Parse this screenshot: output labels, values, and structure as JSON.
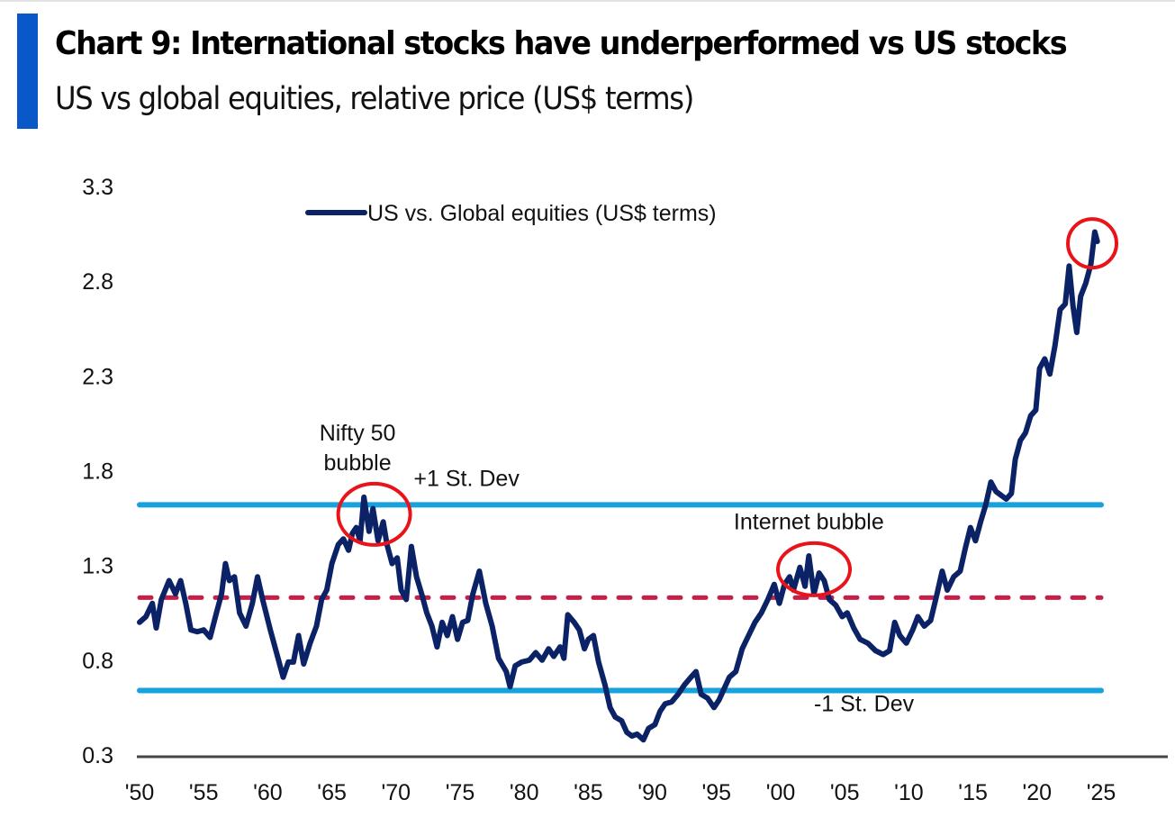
{
  "header": {
    "title": "Chart 9: International stocks have underperformed vs US stocks",
    "subtitle": "US vs global equities, relative price (US$ terms)"
  },
  "colors": {
    "accent_bar": "#0a57c9",
    "series": "#0b2366",
    "stdev_lines": "#17a1dd",
    "mean_line": "#c4204a",
    "highlight_circles": "#e8141a",
    "axis": "#444444"
  },
  "chart_data": {
    "type": "line",
    "title": "Chart 9: International stocks have underperformed vs US stocks",
    "subtitle": "US vs global equities, relative price (US$ terms)",
    "xlabel": "",
    "ylabel": "",
    "xlim": [
      1950,
      2025
    ],
    "ylim": [
      0.3,
      3.3
    ],
    "grid": false,
    "legend": {
      "position": "top-center",
      "entries": [
        "US vs. Global equities (US$ terms)"
      ]
    },
    "x_ticks": [
      1950,
      1955,
      1960,
      1965,
      1970,
      1975,
      1980,
      1985,
      1990,
      1995,
      2000,
      2005,
      2010,
      2015,
      2020,
      2025
    ],
    "x_tick_labels": [
      "'50",
      "'55",
      "'60",
      "'65",
      "'70",
      "'75",
      "'80",
      "'85",
      "'90",
      "'95",
      "'00",
      "'05",
      "'10",
      "'15",
      "'20",
      "'25"
    ],
    "y_ticks": [
      0.3,
      0.8,
      1.3,
      1.8,
      2.3,
      2.8,
      3.3
    ],
    "y_tick_labels": [
      "0.3",
      "0.8",
      "1.3",
      "1.8",
      "2.3",
      "2.8",
      "3.3"
    ],
    "series": [
      {
        "name": "US vs. Global equities (US$ terms)",
        "x": [
          1950.0,
          1950.5,
          1951.0,
          1951.3,
          1951.7,
          1952.3,
          1952.8,
          1953.2,
          1953.6,
          1954.0,
          1954.5,
          1955.0,
          1955.5,
          1956.0,
          1956.4,
          1956.7,
          1957.0,
          1957.4,
          1957.8,
          1958.3,
          1958.8,
          1959.2,
          1959.6,
          1960.2,
          1960.8,
          1961.2,
          1961.6,
          1962.0,
          1962.4,
          1962.8,
          1963.3,
          1963.8,
          1964.2,
          1964.6,
          1965.0,
          1965.5,
          1965.9,
          1966.3,
          1966.6,
          1966.9,
          1967.2,
          1967.5,
          1967.9,
          1968.2,
          1968.6,
          1969.0,
          1969.3,
          1969.7,
          1970.1,
          1970.4,
          1970.8,
          1971.2,
          1971.6,
          1972.0,
          1972.4,
          1972.8,
          1973.2,
          1973.6,
          1974.0,
          1974.4,
          1974.8,
          1975.2,
          1975.6,
          1976.0,
          1976.5,
          1977.0,
          1977.5,
          1978.0,
          1978.6,
          1978.9,
          1979.3,
          1979.8,
          1980.4,
          1980.9,
          1981.4,
          1981.9,
          1982.3,
          1982.8,
          1983.1,
          1983.4,
          1983.9,
          1984.3,
          1984.7,
          1985.0,
          1985.4,
          1985.8,
          1986.3,
          1986.7,
          1987.1,
          1987.6,
          1988.0,
          1988.4,
          1988.8,
          1989.3,
          1989.7,
          1990.2,
          1990.6,
          1991.0,
          1991.5,
          1992.0,
          1992.5,
          1993.0,
          1993.4,
          1993.8,
          1994.3,
          1994.8,
          1995.2,
          1995.6,
          1996.0,
          1996.5,
          1997.0,
          1997.5,
          1998.0,
          1998.5,
          1999.0,
          1999.5,
          1999.9,
          2000.3,
          2000.7,
          2001.0,
          2001.5,
          2001.9,
          2002.2,
          2002.6,
          2003.0,
          2003.4,
          2003.8,
          2004.3,
          2004.8,
          2005.2,
          2005.7,
          2006.2,
          2006.8,
          2007.4,
          2008.0,
          2008.5,
          2008.9,
          2009.3,
          2009.8,
          2010.3,
          2010.7,
          2011.2,
          2011.7,
          2012.2,
          2012.6,
          2013.0,
          2013.5,
          2014.0,
          2014.4,
          2014.8,
          2015.2,
          2015.6,
          2016.0,
          2016.4,
          2016.8,
          2017.2,
          2017.6,
          2018.0,
          2018.3,
          2018.7,
          2019.1,
          2019.5,
          2019.9,
          2020.2,
          2020.6,
          2021.0,
          2021.4,
          2021.8,
          2022.2,
          2022.5,
          2022.8,
          2023.1,
          2023.4,
          2023.8,
          2024.2,
          2024.5,
          2024.7
        ],
        "values": [
          1.0,
          1.03,
          1.1,
          0.97,
          1.12,
          1.22,
          1.15,
          1.22,
          1.1,
          0.96,
          0.95,
          0.96,
          0.92,
          1.05,
          1.15,
          1.31,
          1.22,
          1.24,
          1.05,
          0.98,
          1.1,
          1.24,
          1.12,
          0.96,
          0.81,
          0.71,
          0.79,
          0.79,
          0.93,
          0.78,
          0.89,
          0.98,
          1.12,
          1.17,
          1.31,
          1.41,
          1.44,
          1.38,
          1.47,
          1.5,
          1.43,
          1.66,
          1.48,
          1.6,
          1.43,
          1.53,
          1.41,
          1.31,
          1.34,
          1.17,
          1.12,
          1.4,
          1.24,
          1.15,
          1.05,
          0.98,
          0.87,
          1.0,
          0.93,
          1.03,
          0.91,
          1.0,
          1.01,
          1.15,
          1.27,
          1.1,
          0.98,
          0.81,
          0.74,
          0.66,
          0.77,
          0.79,
          0.8,
          0.84,
          0.8,
          0.86,
          0.82,
          0.87,
          0.81,
          1.04,
          1.0,
          0.96,
          0.86,
          0.91,
          0.93,
          0.79,
          0.67,
          0.55,
          0.5,
          0.48,
          0.42,
          0.4,
          0.41,
          0.38,
          0.44,
          0.46,
          0.53,
          0.57,
          0.58,
          0.62,
          0.67,
          0.71,
          0.74,
          0.62,
          0.6,
          0.55,
          0.59,
          0.65,
          0.71,
          0.74,
          0.86,
          0.93,
          1.0,
          1.05,
          1.12,
          1.2,
          1.1,
          1.2,
          1.24,
          1.17,
          1.29,
          1.19,
          1.35,
          1.15,
          1.26,
          1.22,
          1.12,
          1.09,
          1.03,
          1.05,
          0.97,
          0.91,
          0.89,
          0.85,
          0.83,
          0.85,
          1.0,
          0.93,
          0.89,
          0.96,
          1.03,
          0.98,
          1.01,
          1.15,
          1.27,
          1.17,
          1.24,
          1.27,
          1.39,
          1.5,
          1.43,
          1.53,
          1.62,
          1.74,
          1.69,
          1.67,
          1.65,
          1.68,
          1.86,
          1.96,
          2.0,
          2.09,
          2.12,
          2.34,
          2.39,
          2.31,
          2.46,
          2.65,
          2.68,
          2.88,
          2.67,
          2.53,
          2.72,
          2.79,
          2.89,
          3.06,
          3.01
        ]
      }
    ],
    "reference_lines": [
      {
        "name": "+1 St. Dev",
        "value": 1.62,
        "style": "solid",
        "label": "+1 St. Dev"
      },
      {
        "name": "mean",
        "value": 1.13,
        "style": "dashed",
        "label": ""
      },
      {
        "name": "-1 St. Dev",
        "value": 0.64,
        "style": "solid",
        "label": "-1 St. Dev"
      }
    ],
    "annotations": [
      {
        "text_lines": [
          "Nifty 50",
          "bubble"
        ],
        "x": 1967.0,
        "y": 1.96
      },
      {
        "text_lines": [
          "Internet bubble"
        ],
        "x": 2002.2,
        "y": 1.49
      },
      {
        "text_lines": [
          "+1 St. Dev"
        ],
        "x": 1975.5,
        "y": 1.72
      },
      {
        "text_lines": [
          "-1 St. Dev"
        ],
        "x": 2006.5,
        "y": 0.53
      }
    ],
    "highlights": [
      {
        "name": "nifty-50-peak",
        "x": 1968.3,
        "y": 1.57
      },
      {
        "name": "internet-bubble-peak",
        "x": 2002.6,
        "y": 1.28
      },
      {
        "name": "latest-peak",
        "x": 2024.3,
        "y": 3.0
      }
    ]
  }
}
